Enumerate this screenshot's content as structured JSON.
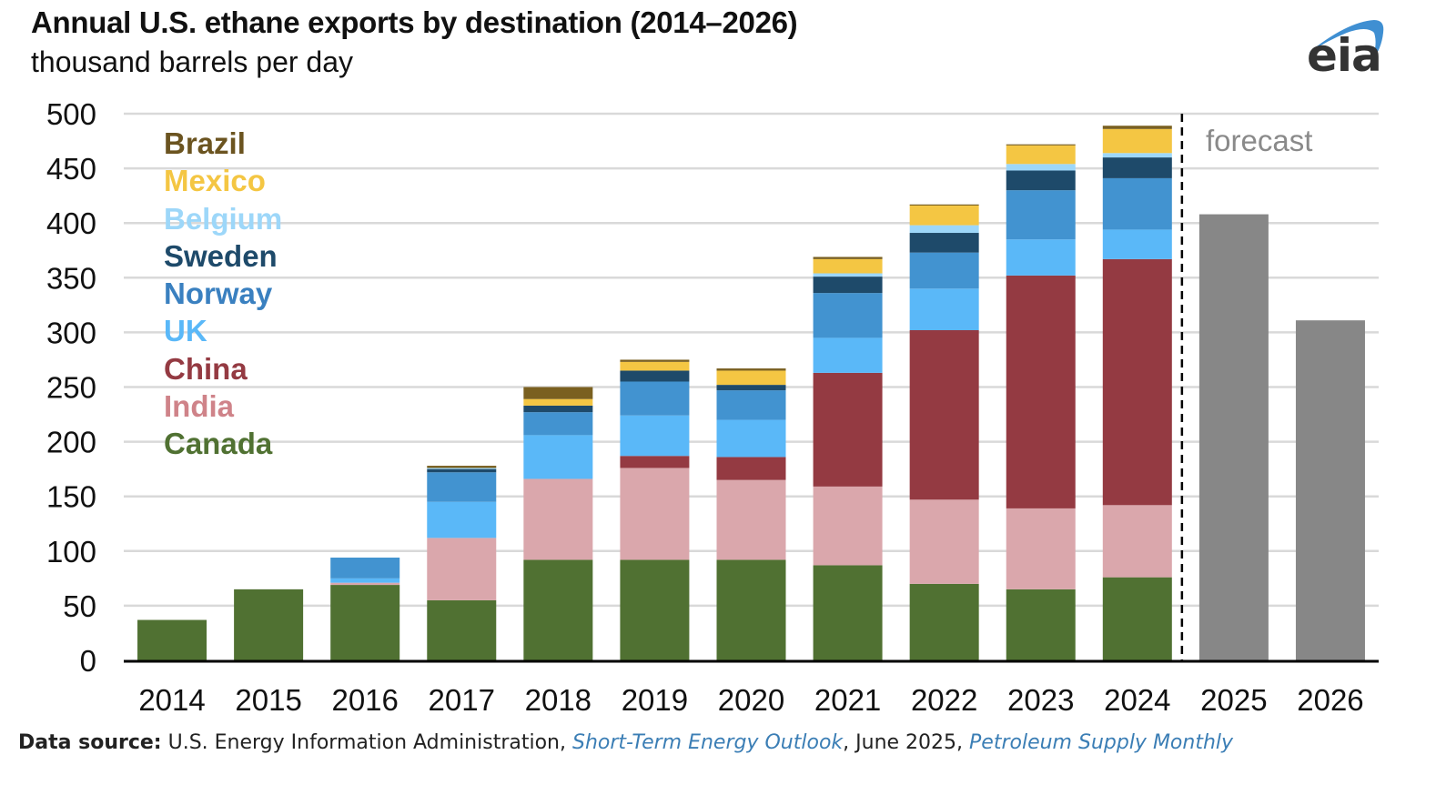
{
  "header": {
    "title": "Annual U.S. ethane exports by destination (2014–2026)",
    "subtitle": "thousand barrels per day"
  },
  "logo": {
    "text": "eia",
    "icon": "eia-swoosh-logo",
    "swoosh_color": "#3f8fd2"
  },
  "forecast_label": "forecast",
  "source": {
    "label": "Data source:",
    "text1": " U.S. Energy Information Administration, ",
    "link1": "Short-Term Energy Outlook",
    "text2": ", June 2025, ",
    "link2": "Petroleum Supply Monthly"
  },
  "chart_data": {
    "type": "bar",
    "stacked": true,
    "title": "Annual U.S. ethane exports by destination (2014–2026)",
    "ylabel": "thousand barrels per day",
    "xlabel": "",
    "ylim": [
      0,
      500
    ],
    "yticks": [
      0,
      50,
      100,
      150,
      200,
      250,
      300,
      350,
      400,
      450,
      500
    ],
    "grid": true,
    "legend_position": "top-left",
    "categories": [
      "2014",
      "2015",
      "2016",
      "2017",
      "2018",
      "2019",
      "2020",
      "2021",
      "2022",
      "2023",
      "2024",
      "2025",
      "2026"
    ],
    "forecast_start_index": 11,
    "series": [
      {
        "name": "Canada",
        "color": "#507132",
        "values": [
          37,
          65,
          69,
          55,
          92,
          92,
          92,
          87,
          70,
          65,
          76,
          null,
          null
        ]
      },
      {
        "name": "India",
        "color": "#daa7ac",
        "values": [
          0,
          0,
          2,
          57,
          74,
          84,
          73,
          72,
          77,
          74,
          66,
          null,
          null
        ]
      },
      {
        "name": "China",
        "color": "#943a42",
        "values": [
          0,
          0,
          0,
          0,
          0,
          11,
          21,
          104,
          155,
          213,
          225,
          null,
          null
        ]
      },
      {
        "name": "UK",
        "color": "#5ab8f8",
        "values": [
          0,
          0,
          4,
          33,
          40,
          37,
          34,
          32,
          38,
          33,
          27,
          null,
          null
        ]
      },
      {
        "name": "Norway",
        "color": "#4293d0",
        "values": [
          0,
          0,
          19,
          27,
          21,
          31,
          27,
          41,
          33,
          45,
          47,
          null,
          null
        ]
      },
      {
        "name": "Sweden",
        "color": "#1e4a6a",
        "values": [
          0,
          0,
          0,
          3,
          6,
          10,
          5,
          15,
          18,
          18,
          19,
          null,
          null
        ]
      },
      {
        "name": "Belgium",
        "color": "#9dd7f9",
        "values": [
          0,
          0,
          0,
          1,
          0,
          0,
          0,
          3,
          7,
          6,
          4,
          null,
          null
        ]
      },
      {
        "name": "Mexico",
        "color": "#f4c643",
        "values": [
          0,
          0,
          0,
          0,
          6,
          8,
          13,
          13,
          18,
          17,
          22,
          null,
          null
        ]
      },
      {
        "name": "Brazil",
        "color": "#7a6020",
        "values": [
          0,
          0,
          0,
          2,
          11,
          2,
          2,
          2,
          1,
          1,
          3,
          null,
          null
        ]
      },
      {
        "name": "Total (forecast)",
        "color": "#878787",
        "values": [
          null,
          null,
          null,
          null,
          null,
          null,
          null,
          null,
          null,
          null,
          null,
          408,
          311
        ]
      }
    ],
    "legend_order": [
      "Brazil",
      "Mexico",
      "Belgium",
      "Sweden",
      "Norway",
      "UK",
      "China",
      "India",
      "Canada"
    ],
    "legend_text_colors": {
      "Brazil": "#6b5420",
      "Mexico": "#f4c643",
      "Belgium": "#9dd7f9",
      "Sweden": "#1e4a6a",
      "Norway": "#3a80c0",
      "UK": "#5ab8f8",
      "China": "#943a42",
      "India": "#cf8389",
      "Canada": "#507132"
    }
  }
}
